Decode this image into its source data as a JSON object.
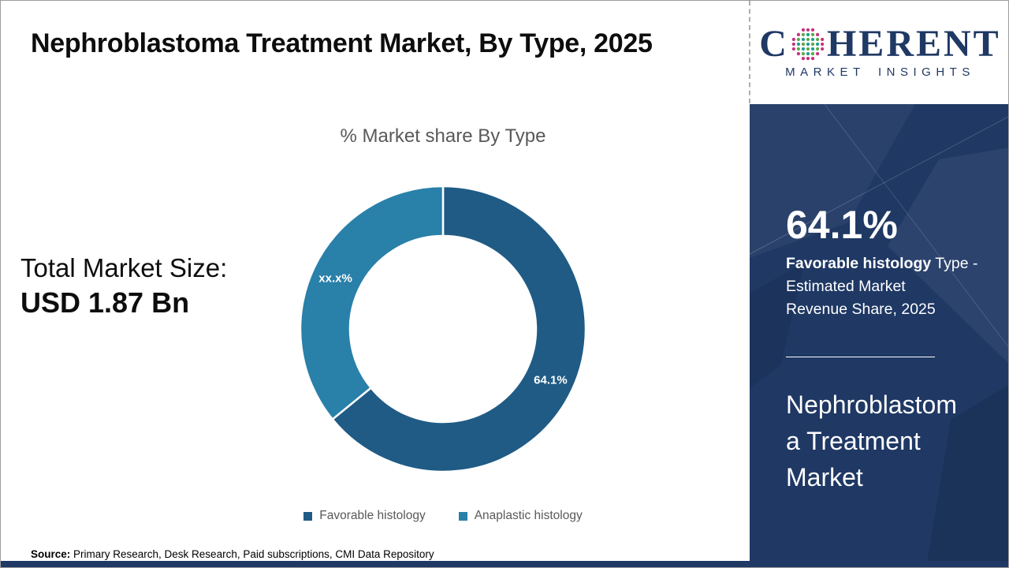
{
  "header": {
    "title": "Nephroblastoma Treatment Market, By Type, 2025"
  },
  "logo": {
    "part1": "C",
    "part2": "HERENT",
    "subtitle": "MARKET INSIGHTS",
    "brand_navy": "#1F3864",
    "globe_colors": {
      "teal": "#1E9E8E",
      "green": "#5FA846",
      "pink": "#C5327F"
    }
  },
  "chart": {
    "title": "% Market share By Type"
  },
  "chart_data": {
    "type": "pie",
    "donut": true,
    "title": "% Market share By Type",
    "start_angle_deg": 0,
    "direction": "clockwise",
    "slices": [
      {
        "label": "Favorable histology",
        "value": 64.1,
        "display_label": "64.1%",
        "color": "#1F5B85"
      },
      {
        "label": "Anaplastic histology",
        "value": 35.9,
        "display_label": "xx.x%",
        "color": "#2980A9"
      }
    ],
    "legend_position": "bottom"
  },
  "total_market": {
    "label": "Total Market Size:",
    "value": "USD 1.87 Bn"
  },
  "sidebar": {
    "stat_value": "64.1%",
    "stat_desc_bold": "Favorable histology",
    "stat_desc_rest": " Type -\nEstimated Market\nRevenue Share, 2025",
    "market_name": "Nephroblastom\na Treatment\nMarket",
    "panel_color": "#1F3864"
  },
  "footer": {
    "source_label": "Source:",
    "source_text": " Primary Research, Desk Research, Paid subscriptions, CMI Data Repository"
  }
}
